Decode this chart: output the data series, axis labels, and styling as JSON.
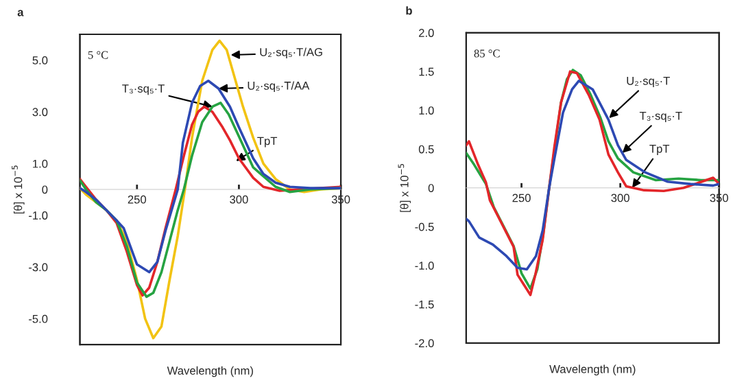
{
  "chart_data": [
    {
      "type": "line",
      "title": "a",
      "xlabel": "Wavelength (nm)",
      "ylabel": "[θ] x 10$^{−5}$",
      "xlim": [
        222,
        350
      ],
      "xticks": [
        250,
        300,
        350
      ],
      "ylim": [
        -6,
        6
      ],
      "yticks": [
        {
          "value": 5,
          "label": "5.0"
        },
        {
          "value": 3,
          "label": "3.0"
        },
        {
          "value": 1,
          "label": "1.0"
        },
        0,
        {
          "value": -1,
          "label": "-1.0"
        },
        {
          "value": -3,
          "label": "-3.0"
        },
        {
          "value": -5,
          "label": "-5.0"
        }
      ],
      "legend": false,
      "series": [
        {
          "color": "#f2c313",
          "x": [
            222,
            225,
            230,
            235,
            240,
            245,
            250,
            254,
            258,
            262,
            266,
            270,
            273.5,
            277,
            282,
            287,
            290.5,
            294,
            298,
            302,
            307,
            312,
            318,
            325,
            332,
            340,
            350
          ],
          "values": [
            0.05,
            -0.2,
            -0.5,
            -0.8,
            -1.2,
            -2.0,
            -3.5,
            -5.0,
            -5.75,
            -5.3,
            -3.5,
            -1.8,
            0,
            2.0,
            4.2,
            5.4,
            5.75,
            5.4,
            4.3,
            3.2,
            2.0,
            1.0,
            0.4,
            0.0,
            -0.1,
            0.0,
            0.05
          ]
        },
        {
          "color": "#e3262a",
          "x": [
            222,
            225,
            230,
            235,
            240,
            245,
            250,
            252.7,
            256,
            260,
            264,
            269,
            273,
            277,
            280,
            283,
            287,
            292,
            295.6,
            300,
            307,
            312,
            320,
            330,
            340,
            350
          ],
          "values": [
            0.4,
            0.1,
            -0.4,
            -0.8,
            -1.3,
            -2.4,
            -3.7,
            -4.1,
            -3.8,
            -2.8,
            -1.5,
            0,
            1.3,
            2.5,
            3.0,
            3.2,
            3.0,
            2.4,
            1.9,
            1.2,
            0.45,
            0.1,
            -0.05,
            0.0,
            0.05,
            0.1
          ]
        },
        {
          "color": "#26a342",
          "x": [
            222,
            225,
            230,
            235,
            240,
            245,
            250,
            254.7,
            258,
            262,
            266,
            270,
            273,
            277,
            282,
            287,
            291,
            295,
            300,
            307,
            318,
            325,
            335,
            350
          ],
          "values": [
            0.35,
            0.0,
            -0.5,
            -0.8,
            -1.2,
            -2.2,
            -3.6,
            -4.15,
            -4.0,
            -3.2,
            -2.0,
            -0.8,
            0,
            1.3,
            2.6,
            3.2,
            3.35,
            2.9,
            2.05,
            0.85,
            0.1,
            -0.1,
            0.0,
            0.05
          ]
        },
        {
          "color": "#2d49b3",
          "x": [
            222,
            225,
            230,
            235,
            240,
            243.5,
            250,
            256,
            260,
            264,
            270,
            272.5,
            277,
            281,
            285,
            290,
            295.6,
            300,
            307,
            312,
            318,
            325,
            335,
            350
          ],
          "values": [
            0.05,
            -0.1,
            -0.4,
            -0.8,
            -1.2,
            -1.5,
            -2.9,
            -3.2,
            -2.8,
            -1.6,
            0,
            1.8,
            3.35,
            4.0,
            4.2,
            3.9,
            3.2,
            2.4,
            1.2,
            0.6,
            0.26,
            0.1,
            0.05,
            0.05
          ]
        }
      ],
      "annotations": [
        "5 °C",
        {
          "text": "U₂·sq₅·T/AG",
          "x": 296,
          "y": 5.2
        },
        {
          "text": "U₂·sq₅·T/AA",
          "x": 290,
          "y": 3.9
        },
        {
          "text": "T₃·sq₅·T",
          "x": 287,
          "y": 3.2
        },
        {
          "text": "TpT",
          "x": 298.6,
          "y": 1.1
        }
      ]
    },
    {
      "type": "line",
      "title": "b",
      "xlabel": "Wavelength (nm)",
      "ylabel": "[θ] x 10$^{−5}$",
      "xlim": [
        222,
        350
      ],
      "xticks": [
        250,
        300,
        350
      ],
      "ylim": [
        -2,
        2
      ],
      "yticks": [
        {
          "value": 2,
          "label": "2.0"
        },
        {
          "value": 1.5,
          "label": "1.5"
        },
        {
          "value": 1,
          "label": "1.0"
        },
        {
          "value": 0.5,
          "label": "0.5"
        },
        0,
        {
          "value": -0.5,
          "label": "-0.5"
        },
        {
          "value": -1,
          "label": "-1.0"
        },
        {
          "value": -1.5,
          "label": "-1.5"
        },
        {
          "value": -2,
          "label": "-2.0"
        }
      ],
      "legend": false,
      "series": [
        {
          "color": "#26a342",
          "x": [
            222,
            226,
            232,
            236,
            240,
            246,
            250,
            254.5,
            258,
            261,
            264,
            267,
            270,
            273,
            276,
            280,
            285,
            290,
            294,
            298.8,
            306.6,
            318,
            329.5,
            341,
            350
          ],
          "values": [
            0.45,
            0.3,
            0.05,
            -0.25,
            -0.45,
            -0.75,
            -1.1,
            -1.3,
            -1.05,
            -0.6,
            0,
            0.55,
            1.1,
            1.4,
            1.52,
            1.45,
            1.2,
            0.9,
            0.6,
            0.38,
            0.2,
            0.1,
            0.12,
            0.1,
            0.1
          ]
        },
        {
          "color": "#e3262a",
          "x": [
            222,
            223.4,
            228,
            232,
            234,
            240,
            246,
            248,
            254.5,
            257,
            260.7,
            264,
            266.6,
            270,
            274.6,
            278,
            284,
            289.5,
            294,
            298.8,
            303,
            312,
            322,
            332,
            347,
            350
          ],
          "values": [
            0.55,
            0.6,
            0.3,
            0.07,
            -0.16,
            -0.46,
            -0.76,
            -1.12,
            -1.38,
            -1.12,
            -0.67,
            0,
            0.52,
            1.1,
            1.5,
            1.48,
            1.2,
            0.88,
            0.43,
            0.2,
            0.02,
            -0.03,
            -0.04,
            0.0,
            0.13,
            0.05
          ]
        },
        {
          "color": "#2d49b3",
          "x": [
            222,
            223.4,
            228.6,
            235.5,
            242.4,
            248,
            252.7,
            257.3,
            260.7,
            264,
            266.6,
            271,
            275.6,
            279,
            286,
            294,
            298.8,
            303,
            312.6,
            324,
            335.5,
            347,
            350
          ],
          "values": [
            -0.4,
            -0.43,
            -0.64,
            -0.73,
            -0.88,
            -1.03,
            -1.05,
            -0.88,
            -0.55,
            0,
            0.37,
            0.97,
            1.27,
            1.38,
            1.27,
            0.88,
            0.55,
            0.36,
            0.2,
            0.08,
            0.05,
            0.03,
            0.05
          ]
        }
      ],
      "annotations": [
        "85 °C",
        {
          "text": "U₂·sq₅·T",
          "x": 294.3,
          "y": 0.9
        },
        {
          "text": "T₃·sq₅·T",
          "x": 301,
          "y": 0.45
        },
        {
          "text": "TpT",
          "x": 306,
          "y": 0.0
        }
      ]
    }
  ]
}
